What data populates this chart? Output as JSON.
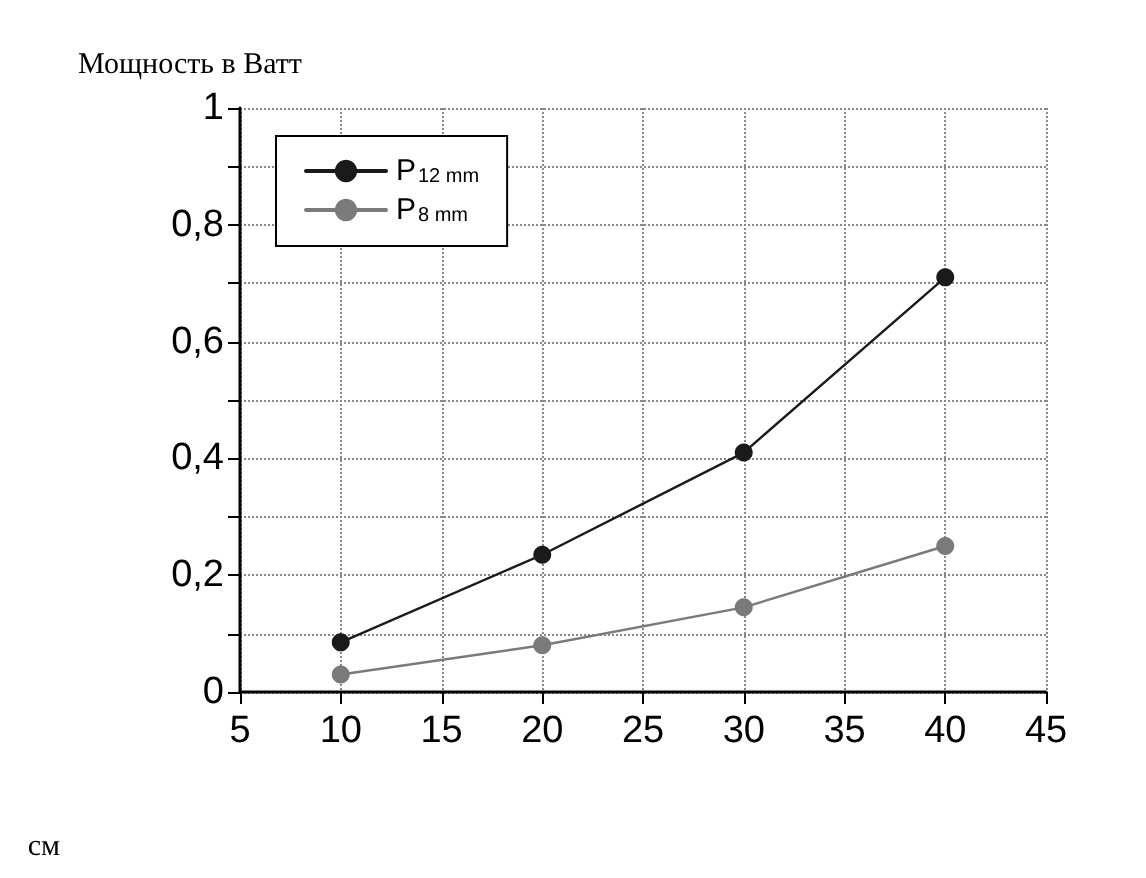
{
  "chart_data": {
    "type": "line",
    "ylabel": "Мощность в Ватт",
    "xlabel": "см",
    "x": [
      10,
      20,
      30,
      40
    ],
    "series": [
      {
        "name": "P$_{12 mm}$",
        "color": "#1a1a1a",
        "values": [
          0.085,
          0.235,
          0.41,
          0.71
        ]
      },
      {
        "name": "P$_{8 mm}$",
        "color": "#7a7a7a",
        "values": [
          0.03,
          0.08,
          0.145,
          0.25
        ]
      }
    ],
    "xlim": [
      5,
      45
    ],
    "xticks": [
      5,
      10,
      15,
      20,
      25,
      30,
      35,
      40,
      45
    ],
    "ylim": [
      0,
      1
    ],
    "yticks": [
      0,
      {
        "value": 0.1,
        "label": null
      },
      {
        "value": 0.2,
        "label": "0,2"
      },
      {
        "value": 0.3,
        "label": null
      },
      {
        "value": 0.4,
        "label": "0,4"
      },
      {
        "value": 0.5,
        "label": null
      },
      {
        "value": 0.6,
        "label": "0,6"
      },
      {
        "value": 0.7,
        "label": null
      },
      {
        "value": 0.8,
        "label": "0,8"
      },
      {
        "value": 0.9,
        "label": null
      },
      1
    ],
    "grid": true,
    "legend": "top left",
    "marker": "circle",
    "line_style": "solid"
  }
}
